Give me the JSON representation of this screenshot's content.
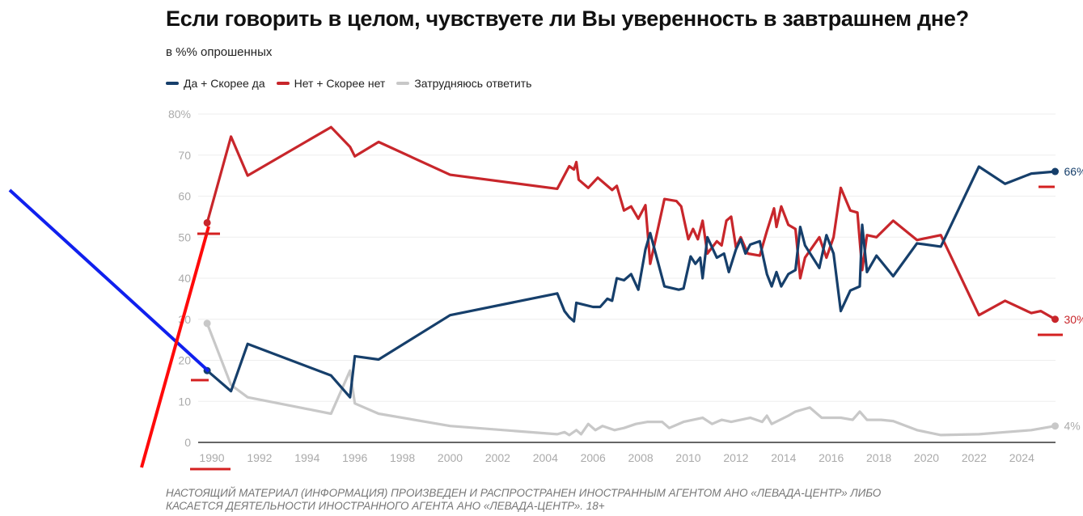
{
  "chart_data": {
    "type": "line",
    "title": "Если говорить в целом, чувствуете ли Вы уверенность в завтрашнем дне?",
    "subtitle": "в %% опрошенных",
    "xlabel": "",
    "ylabel": "",
    "ylim": [
      0,
      80
    ],
    "xlim": [
      1989.3,
      2025.6
    ],
    "grid": true,
    "legend_position": "top-left",
    "y_ticks": [
      "0",
      "10",
      "20",
      "30",
      "40",
      "50",
      "60",
      "70",
      "80%"
    ],
    "x_ticks": [
      "1990",
      "1992",
      "1994",
      "1996",
      "1998",
      "2000",
      "2002",
      "2004",
      "2006",
      "2008",
      "2010",
      "2012",
      "2014",
      "2016",
      "2018",
      "2020",
      "2022",
      "2024"
    ],
    "series": [
      {
        "name": "Да + Скорее да",
        "color": "#163f6b",
        "end_label": "66%",
        "points": [
          [
            1989.8,
            17.5
          ],
          [
            1990.8,
            12.5
          ],
          [
            1991.5,
            24
          ],
          [
            1995,
            16.3
          ],
          [
            1995.8,
            11
          ],
          [
            1996,
            21
          ],
          [
            1997,
            20.2
          ],
          [
            2000,
            31
          ],
          [
            2004.5,
            36.3
          ],
          [
            2004.8,
            32
          ],
          [
            2005,
            30.5
          ],
          [
            2005.2,
            29.5
          ],
          [
            2005.3,
            34
          ],
          [
            2006,
            33
          ],
          [
            2006.3,
            33
          ],
          [
            2006.6,
            35
          ],
          [
            2006.8,
            34.5
          ],
          [
            2007,
            40
          ],
          [
            2007.3,
            39.5
          ],
          [
            2007.6,
            41
          ],
          [
            2007.9,
            37.2
          ],
          [
            2008.2,
            47
          ],
          [
            2008.4,
            51
          ],
          [
            2009,
            38
          ],
          [
            2009.6,
            37.2
          ],
          [
            2009.8,
            37.5
          ],
          [
            2010.1,
            45.3
          ],
          [
            2010.3,
            43.5
          ],
          [
            2010.5,
            45
          ],
          [
            2010.6,
            40
          ],
          [
            2010.8,
            50
          ],
          [
            2011.2,
            45
          ],
          [
            2011.5,
            46
          ],
          [
            2011.7,
            41.5
          ],
          [
            2012,
            47
          ],
          [
            2012.2,
            49.5
          ],
          [
            2012.4,
            46
          ],
          [
            2012.6,
            48.2
          ],
          [
            2013,
            49
          ],
          [
            2013.3,
            41
          ],
          [
            2013.5,
            38
          ],
          [
            2013.7,
            41.5
          ],
          [
            2013.9,
            38
          ],
          [
            2014.2,
            41
          ],
          [
            2014.5,
            42
          ],
          [
            2014.7,
            52.5
          ],
          [
            2014.9,
            48
          ],
          [
            2015.5,
            42.5
          ],
          [
            2015.8,
            50.5
          ],
          [
            2016.1,
            46
          ],
          [
            2016.4,
            32
          ],
          [
            2016.8,
            37
          ],
          [
            2017.2,
            38
          ],
          [
            2017.3,
            53
          ],
          [
            2017.5,
            41.5
          ],
          [
            2017.9,
            45.5
          ],
          [
            2018.6,
            40.5
          ],
          [
            2019.6,
            48.5
          ],
          [
            2020.6,
            47.7
          ],
          [
            2022.2,
            67.2
          ],
          [
            2023.3,
            63
          ],
          [
            2024.4,
            65.5
          ],
          [
            2025.4,
            66
          ]
        ]
      },
      {
        "name": "Нет + Скорее нет",
        "color": "#c8262b",
        "end_label": "30%",
        "points": [
          [
            1989.8,
            53.5
          ],
          [
            1990.8,
            74.5
          ],
          [
            1991.5,
            65
          ],
          [
            1995,
            76.8
          ],
          [
            1995.8,
            72
          ],
          [
            1996,
            69.7
          ],
          [
            1997,
            73.2
          ],
          [
            2000,
            65.2
          ],
          [
            2004.5,
            61.8
          ],
          [
            2005,
            67.3
          ],
          [
            2005.2,
            66.5
          ],
          [
            2005.3,
            68.3
          ],
          [
            2005.4,
            64
          ],
          [
            2005.8,
            62
          ],
          [
            2006.2,
            64.5
          ],
          [
            2006.8,
            61.5
          ],
          [
            2007,
            62.5
          ],
          [
            2007.3,
            56.5
          ],
          [
            2007.6,
            57.5
          ],
          [
            2007.9,
            54.5
          ],
          [
            2008.2,
            57.8
          ],
          [
            2008.4,
            43.5
          ],
          [
            2009,
            59.3
          ],
          [
            2009.5,
            58.8
          ],
          [
            2009.7,
            57.5
          ],
          [
            2010,
            49.5
          ],
          [
            2010.2,
            52
          ],
          [
            2010.4,
            49.5
          ],
          [
            2010.6,
            54
          ],
          [
            2010.8,
            46
          ],
          [
            2011.2,
            49
          ],
          [
            2011.4,
            48
          ],
          [
            2011.6,
            54
          ],
          [
            2011.8,
            55
          ],
          [
            2012,
            47.5
          ],
          [
            2012.2,
            50
          ],
          [
            2012.5,
            46
          ],
          [
            2013,
            45.5
          ],
          [
            2013.3,
            51.5
          ],
          [
            2013.6,
            57
          ],
          [
            2013.7,
            52.5
          ],
          [
            2013.9,
            57.5
          ],
          [
            2014.2,
            53
          ],
          [
            2014.5,
            52
          ],
          [
            2014.7,
            40
          ],
          [
            2014.9,
            45
          ],
          [
            2015.5,
            50
          ],
          [
            2015.8,
            45
          ],
          [
            2016.1,
            50
          ],
          [
            2016.4,
            62
          ],
          [
            2016.8,
            56.5
          ],
          [
            2017.1,
            56
          ],
          [
            2017.3,
            42
          ],
          [
            2017.5,
            50.5
          ],
          [
            2017.9,
            50
          ],
          [
            2018.6,
            54
          ],
          [
            2019.6,
            49.3
          ],
          [
            2020.6,
            50.5
          ],
          [
            2022.2,
            31
          ],
          [
            2023.3,
            34.5
          ],
          [
            2024.4,
            31.5
          ],
          [
            2024.8,
            32
          ],
          [
            2025.4,
            30
          ]
        ]
      },
      {
        "name": "Затрудняюсь ответить",
        "color": "#c8c8c8",
        "end_label": "4%",
        "points": [
          [
            1989.8,
            29
          ],
          [
            1990.8,
            14
          ],
          [
            1991.5,
            11
          ],
          [
            1995,
            7
          ],
          [
            1995.8,
            17.5
          ],
          [
            1996,
            9.5
          ],
          [
            1997,
            7
          ],
          [
            2000,
            4
          ],
          [
            2004.5,
            2
          ],
          [
            2004.8,
            2.5
          ],
          [
            2005,
            1.8
          ],
          [
            2005.3,
            3
          ],
          [
            2005.5,
            2
          ],
          [
            2005.8,
            4.5
          ],
          [
            2006.1,
            3
          ],
          [
            2006.4,
            4
          ],
          [
            2006.9,
            3
          ],
          [
            2007.3,
            3.5
          ],
          [
            2007.8,
            4.5
          ],
          [
            2008.3,
            5
          ],
          [
            2008.9,
            5
          ],
          [
            2009.2,
            3.5
          ],
          [
            2009.8,
            5
          ],
          [
            2010.2,
            5.5
          ],
          [
            2010.6,
            6
          ],
          [
            2011,
            4.5
          ],
          [
            2011.4,
            5.5
          ],
          [
            2011.8,
            5
          ],
          [
            2012.2,
            5.5
          ],
          [
            2012.6,
            6
          ],
          [
            2013.1,
            5
          ],
          [
            2013.3,
            6.5
          ],
          [
            2013.5,
            4.5
          ],
          [
            2014.2,
            6.5
          ],
          [
            2014.5,
            7.5
          ],
          [
            2015.1,
            8.5
          ],
          [
            2015.6,
            6
          ],
          [
            2016.4,
            6
          ],
          [
            2016.9,
            5.5
          ],
          [
            2017.2,
            7.5
          ],
          [
            2017.5,
            5.5
          ],
          [
            2018.1,
            5.5
          ],
          [
            2018.6,
            5.2
          ],
          [
            2019.6,
            3
          ],
          [
            2020.6,
            1.8
          ],
          [
            2022.2,
            2
          ],
          [
            2023.3,
            2.5
          ],
          [
            2024.4,
            3
          ],
          [
            2025.4,
            4
          ]
        ]
      }
    ]
  },
  "footer": {
    "line1": "НАСТОЯЩИЙ МАТЕРИАЛ (ИНФОРМАЦИЯ) ПРОИЗВЕДЕН И РАСПРОСТРАНЕН ИНОСТРАННЫМ АГЕНТОМ АНО «ЛЕВАДА-ЦЕНТР» ЛИБО",
    "line2": "КАСАЕТСЯ ДЕЯТЕЛЬНОСТИ ИНОСТРАННОГО АГЕНТА АНО «ЛЕВАДА-ЦЕНТР». 18+"
  }
}
